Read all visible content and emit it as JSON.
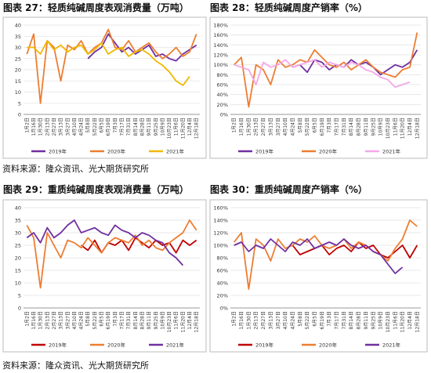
{
  "chart_data": [
    {
      "type": "line",
      "title": "图表 27：轻质纯碱周度表观消费量（万吨）",
      "categories": [
        "1月2日",
        "1月16日",
        "1月30日",
        "2月13日",
        "2月27日",
        "3月13日",
        "3月27日",
        "4月10日",
        "4月24日",
        "5月8日",
        "5月22日",
        "6月5日",
        "6月19日",
        "7月3日",
        "7月17日",
        "7月31日",
        "8月14日",
        "8月28日",
        "9月11日",
        "9月25日",
        "10月9日",
        "10月23日",
        "11月6日",
        "11月20日",
        "12月4日",
        "12月18日"
      ],
      "series": [
        {
          "name": "2019年",
          "color": "#7030a0",
          "values": [
            null,
            null,
            null,
            null,
            null,
            null,
            null,
            null,
            null,
            25,
            28,
            30,
            36,
            32,
            28,
            30,
            27,
            29,
            31,
            26,
            27,
            25,
            24,
            27,
            29,
            31
          ]
        },
        {
          "name": "2020年",
          "color": "#ed7d31",
          "values": [
            27,
            36,
            5,
            33,
            30,
            15,
            31,
            29,
            33,
            27,
            30,
            32,
            38,
            30,
            29,
            33,
            28,
            30,
            32,
            28,
            25,
            27,
            30,
            26,
            28,
            36
          ]
        },
        {
          "name": "2021年",
          "color": "#f0b800",
          "values": [
            30,
            30,
            27,
            33,
            29,
            31,
            28,
            30,
            31,
            27,
            29,
            32,
            27,
            29,
            30,
            26,
            28,
            29,
            27,
            24,
            22,
            19,
            15,
            13,
            17,
            null
          ]
        }
      ],
      "ylim": [
        0,
        40
      ],
      "yticks": [
        0,
        5,
        10,
        15,
        20,
        25,
        30,
        35,
        40
      ]
    },
    {
      "type": "line",
      "title": "图表 28：轻质纯碱周度产销率（%）",
      "categories": [
        "1月2日",
        "1月16日",
        "1月30日",
        "2月13日",
        "2月27日",
        "3月13日",
        "3月27日",
        "4月10日",
        "4月24日",
        "5月8日",
        "5月22日",
        "6月5日",
        "6月19日",
        "7月3日",
        "7月17日",
        "7月31日",
        "8月14日",
        "8月28日",
        "9月11日",
        "9月25日",
        "10月9日",
        "10月23日",
        "11月6日",
        "11月20日",
        "12月4日",
        "12月18日"
      ],
      "series": [
        {
          "name": "2019年",
          "color": "#7030a0",
          "values": [
            null,
            null,
            null,
            null,
            null,
            null,
            null,
            null,
            95,
            100,
            85,
            110,
            105,
            90,
            100,
            95,
            110,
            100,
            105,
            95,
            80,
            90,
            100,
            95,
            105,
            130
          ]
        },
        {
          "name": "2020年",
          "color": "#ed7d31",
          "values": [
            100,
            115,
            15,
            100,
            90,
            60,
            110,
            95,
            100,
            110,
            105,
            130,
            115,
            100,
            95,
            105,
            90,
            100,
            110,
            95,
            85,
            80,
            75,
            90,
            95,
            165
          ]
        },
        {
          "name": "2021年",
          "color": "#f4a7e8",
          "values": [
            100,
            95,
            90,
            60,
            105,
            95,
            100,
            110,
            95,
            100,
            105,
            110,
            95,
            105,
            100,
            95,
            105,
            100,
            90,
            85,
            75,
            70,
            55,
            60,
            65,
            null
          ]
        }
      ],
      "ylim": [
        0,
        180
      ],
      "yticks": [
        {
          "value": 0,
          "label": "0%"
        },
        {
          "value": 20,
          "label": "20%"
        },
        {
          "value": 40,
          "label": "40%"
        },
        {
          "value": 60,
          "label": "60%"
        },
        {
          "value": 80,
          "label": "80%"
        },
        {
          "value": 100,
          "label": "100%"
        },
        {
          "value": 120,
          "label": "120%"
        },
        {
          "value": 140,
          "label": "140%"
        },
        {
          "value": 160,
          "label": "160%"
        },
        {
          "value": 180,
          "label": "180%"
        }
      ]
    },
    {
      "type": "line",
      "title": "图表 29：重质纯碱周度表观消费量（万吨）",
      "categories": [
        "1月2日",
        "1月16日",
        "1月30日",
        "2月13日",
        "2月27日",
        "3月13日",
        "3月27日",
        "4月10日",
        "4月24日",
        "5月8日",
        "5月22日",
        "6月5日",
        "6月19日",
        "7月3日",
        "7月17日",
        "7月31日",
        "8月14日",
        "8月28日",
        "9月11日",
        "9月25日",
        "10月9日",
        "10月23日",
        "11月6日",
        "11月20日",
        "12月4日",
        "12月18日"
      ],
      "series": [
        {
          "name": "2019年",
          "color": "#c00000",
          "values": [
            null,
            null,
            null,
            null,
            null,
            null,
            null,
            null,
            25,
            23,
            27,
            22,
            26,
            25,
            27,
            23,
            28,
            26,
            24,
            27,
            25,
            26,
            22,
            27,
            25,
            27
          ]
        },
        {
          "name": "2020年",
          "color": "#ed7d31",
          "values": [
            33,
            28,
            8,
            30,
            25,
            20,
            27,
            26,
            24,
            28,
            25,
            22,
            26,
            28,
            27,
            26,
            29,
            25,
            27,
            24,
            23,
            26,
            28,
            30,
            35,
            31
          ]
        },
        {
          "name": "2021年",
          "color": "#7030a0",
          "values": [
            28,
            30,
            26,
            32,
            28,
            30,
            33,
            35,
            30,
            31,
            32,
            30,
            29,
            33,
            31,
            30,
            28,
            30,
            29,
            27,
            26,
            22,
            20,
            17,
            null,
            null
          ]
        }
      ],
      "ylim": [
        0,
        40
      ],
      "yticks": [
        0,
        5,
        10,
        15,
        20,
        25,
        30,
        35,
        40
      ]
    },
    {
      "type": "line",
      "title": "图表 30：重质纯碱周度产销率（%）",
      "categories": [
        "1月2日",
        "1月16日",
        "1月30日",
        "2月13日",
        "2月27日",
        "3月13日",
        "3月27日",
        "4月10日",
        "4月24日",
        "5月8日",
        "5月22日",
        "6月5日",
        "6月19日",
        "7月3日",
        "7月17日",
        "7月31日",
        "8月14日",
        "8月28日",
        "9月11日",
        "9月25日",
        "10月9日",
        "10月23日",
        "11月6日",
        "11月20日",
        "12月4日",
        "12月18日"
      ],
      "series": [
        {
          "name": "2019年",
          "color": "#c00000",
          "values": [
            null,
            null,
            null,
            null,
            null,
            null,
            null,
            null,
            100,
            85,
            90,
            95,
            100,
            85,
            95,
            100,
            90,
            105,
            95,
            100,
            85,
            80,
            90,
            100,
            80,
            100
          ]
        },
        {
          "name": "2020年",
          "color": "#ed7d31",
          "values": [
            105,
            120,
            30,
            110,
            100,
            75,
            110,
            95,
            100,
            110,
            105,
            115,
            100,
            95,
            100,
            110,
            95,
            105,
            100,
            90,
            85,
            75,
            95,
            110,
            140,
            130
          ]
        },
        {
          "name": "2021年",
          "color": "#7030a0",
          "values": [
            100,
            105,
            90,
            100,
            95,
            110,
            100,
            90,
            105,
            100,
            110,
            95,
            100,
            105,
            100,
            110,
            100,
            95,
            100,
            90,
            85,
            70,
            55,
            65,
            null,
            null
          ]
        }
      ],
      "ylim": [
        0,
        160
      ],
      "yticks": [
        {
          "value": 0,
          "label": "0%"
        },
        {
          "value": 20,
          "label": "20%"
        },
        {
          "value": 40,
          "label": "40%"
        },
        {
          "value": 60,
          "label": "60%"
        },
        {
          "value": 80,
          "label": "80%"
        },
        {
          "value": 100,
          "label": "100%"
        },
        {
          "value": 120,
          "label": "120%"
        },
        {
          "value": 140,
          "label": "140%"
        },
        {
          "value": 160,
          "label": "160%"
        }
      ]
    }
  ],
  "sources": [
    "资料来源：隆众资讯、光大期货研究所",
    "资料来源：隆众资讯、光大期货研究所"
  ]
}
